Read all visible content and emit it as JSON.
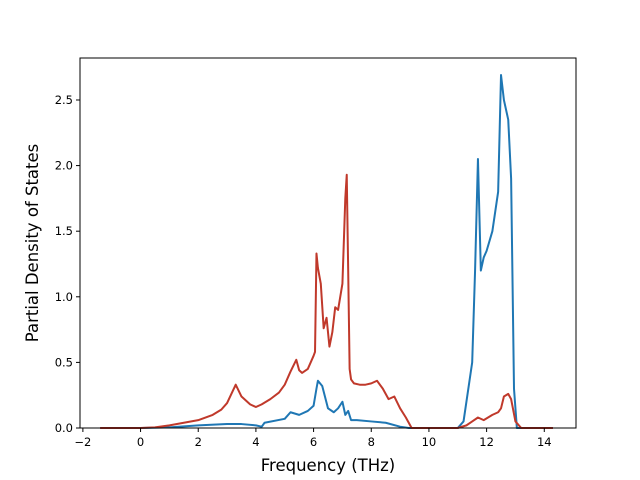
{
  "chart_data": {
    "type": "line",
    "title": "",
    "xlabel": "Frequency (THz)",
    "ylabel": "Partial Density of States",
    "xlim": [
      -2.1,
      15.1
    ],
    "ylim": [
      0,
      2.82
    ],
    "x_ticks": [
      -2,
      0,
      2,
      4,
      6,
      8,
      10,
      12,
      14
    ],
    "y_ticks": [
      0.0,
      0.5,
      1.0,
      1.5,
      2.0,
      2.5
    ],
    "x_tick_labels": [
      "−2",
      "0",
      "2",
      "4",
      "6",
      "8",
      "10",
      "12",
      "14"
    ],
    "y_tick_labels": [
      "0.0",
      "0.5",
      "1.0",
      "1.5",
      "2.0",
      "2.5"
    ],
    "grid": false,
    "legend": "none",
    "series": [
      {
        "color": "#1f77b4",
        "x": [
          -1.4,
          0.0,
          1.0,
          2.0,
          3.0,
          3.5,
          4.0,
          4.2,
          4.3,
          5.0,
          5.2,
          5.5,
          5.8,
          6.0,
          6.1,
          6.15,
          6.3,
          6.5,
          6.7,
          6.85,
          7.0,
          7.1,
          7.2,
          7.3,
          7.5,
          8.0,
          8.5,
          9.0,
          9.3,
          10.0,
          11.0,
          11.2,
          11.5,
          11.6,
          11.7,
          11.8,
          11.9,
          12.0,
          12.2,
          12.4,
          12.5,
          12.6,
          12.75,
          12.85,
          12.95,
          13.05,
          13.5,
          14.3
        ],
        "y": [
          0.0,
          0.0,
          0.005,
          0.02,
          0.03,
          0.03,
          0.02,
          0.01,
          0.04,
          0.07,
          0.12,
          0.1,
          0.13,
          0.17,
          0.3,
          0.36,
          0.32,
          0.15,
          0.12,
          0.15,
          0.2,
          0.1,
          0.13,
          0.06,
          0.06,
          0.05,
          0.04,
          0.01,
          0.0,
          0.0,
          0.0,
          0.05,
          0.5,
          1.2,
          2.05,
          1.2,
          1.3,
          1.35,
          1.5,
          1.8,
          2.69,
          2.5,
          2.35,
          1.9,
          0.3,
          0.0,
          0.0,
          0.0
        ]
      },
      {
        "color": "#c0392b",
        "x": [
          -1.4,
          0.0,
          0.5,
          1.0,
          1.5,
          2.0,
          2.5,
          2.8,
          3.0,
          3.3,
          3.5,
          3.8,
          4.0,
          4.2,
          4.5,
          4.8,
          5.0,
          5.2,
          5.4,
          5.5,
          5.6,
          5.8,
          6.0,
          6.05,
          6.1,
          6.15,
          6.25,
          6.35,
          6.45,
          6.55,
          6.65,
          6.75,
          6.85,
          7.0,
          7.1,
          7.15,
          7.2,
          7.25,
          7.3,
          7.4,
          7.6,
          7.8,
          8.0,
          8.2,
          8.4,
          8.6,
          8.8,
          9.0,
          9.2,
          9.4,
          10.0,
          11.0,
          11.3,
          11.5,
          11.7,
          11.9,
          12.2,
          12.4,
          12.5,
          12.6,
          12.75,
          12.85,
          13.0,
          13.2,
          14.3
        ],
        "y": [
          0.0,
          0.0,
          0.005,
          0.02,
          0.04,
          0.06,
          0.1,
          0.14,
          0.19,
          0.33,
          0.24,
          0.18,
          0.16,
          0.18,
          0.22,
          0.27,
          0.33,
          0.43,
          0.52,
          0.44,
          0.42,
          0.45,
          0.55,
          0.58,
          1.33,
          1.22,
          1.1,
          0.76,
          0.84,
          0.62,
          0.73,
          0.92,
          0.9,
          1.1,
          1.75,
          1.93,
          1.2,
          0.45,
          0.37,
          0.34,
          0.33,
          0.33,
          0.34,
          0.36,
          0.3,
          0.22,
          0.24,
          0.15,
          0.08,
          0.0,
          0.0,
          0.0,
          0.02,
          0.05,
          0.08,
          0.06,
          0.1,
          0.12,
          0.15,
          0.24,
          0.26,
          0.22,
          0.05,
          0.0,
          0.0
        ]
      }
    ]
  }
}
